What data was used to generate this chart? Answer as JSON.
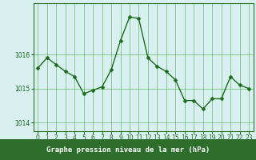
{
  "x": [
    0,
    1,
    2,
    3,
    4,
    5,
    6,
    7,
    8,
    9,
    10,
    11,
    12,
    13,
    14,
    15,
    16,
    17,
    18,
    19,
    20,
    21,
    22,
    23
  ],
  "y": [
    1015.6,
    1015.9,
    1015.7,
    1015.5,
    1015.35,
    1014.85,
    1014.95,
    1015.05,
    1015.55,
    1016.4,
    1017.1,
    1017.05,
    1015.9,
    1015.65,
    1015.5,
    1015.25,
    1014.65,
    1014.65,
    1014.4,
    1014.7,
    1014.7,
    1015.35,
    1015.1,
    1015.0
  ],
  "line_color": "#1a6b1a",
  "marker": "D",
  "marker_size": 2.5,
  "line_width": 1.0,
  "bg_color": "#d8f0f0",
  "plot_bg_color": "#d8f0f0",
  "grid_color": "#4daa4d",
  "grid_alpha": 0.8,
  "yticks": [
    1014,
    1015,
    1016
  ],
  "ylim": [
    1013.75,
    1017.5
  ],
  "xlim": [
    -0.5,
    23.5
  ],
  "xlabel": "Graphe pression niveau de la mer (hPa)",
  "xlabel_fontsize": 6.5,
  "tick_fontsize": 5.5,
  "tick_color": "#1a6b1a",
  "axis_color": "#1a6b1a",
  "bottom_bar_color": "#2d6e2d",
  "spine_color": "#2d6e2d"
}
